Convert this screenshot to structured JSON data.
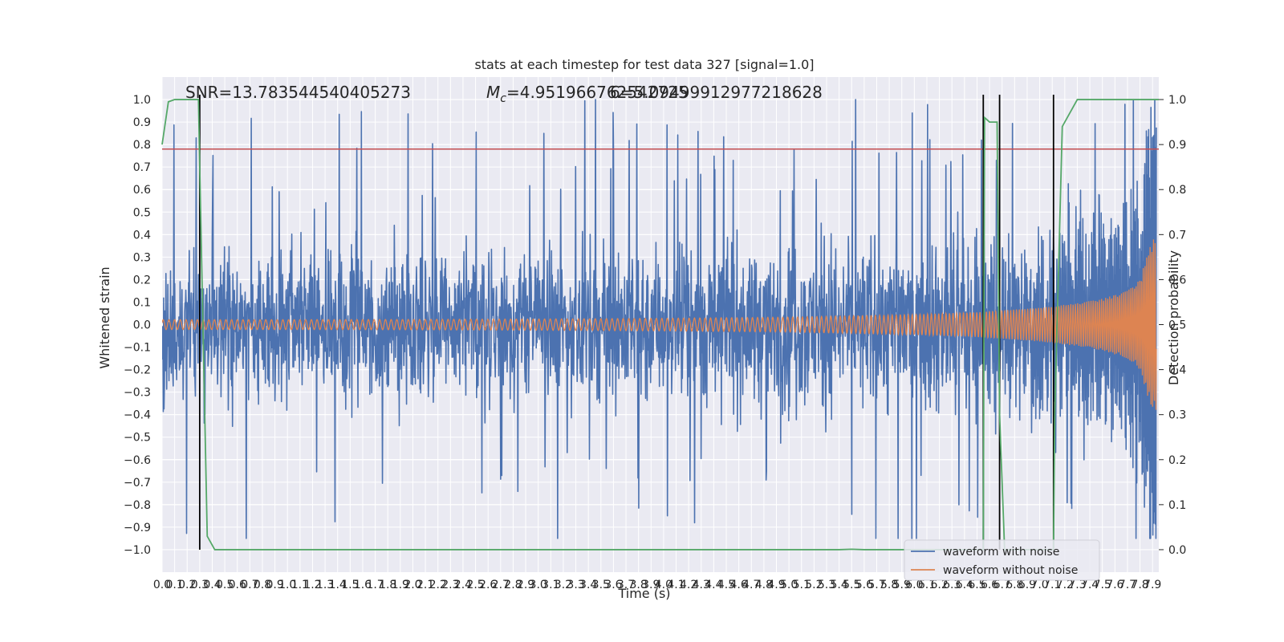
{
  "chart_data": {
    "type": "line",
    "title": "stats at each timestep for test data 327 [signal=1.0]",
    "xlabel": "Time (s)",
    "ylabel_left": "Whitened strain",
    "ylabel_right": "Detection probability",
    "xlim": [
      0.0,
      7.95
    ],
    "ylim_left": [
      -1.1,
      1.1
    ],
    "ylim_right": [
      -0.05,
      1.05
    ],
    "x_ticks": [
      "0.0",
      "0.1",
      "0.2",
      "0.3",
      "0.4",
      "0.5",
      "0.6",
      "0.7",
      "0.8",
      "0.9",
      "1.0",
      "1.1",
      "1.2",
      "1.3",
      "1.4",
      "1.5",
      "1.6",
      "1.7",
      "1.8",
      "1.9",
      "2.0",
      "2.1",
      "2.2",
      "2.3",
      "2.4",
      "2.5",
      "2.6",
      "2.7",
      "2.8",
      "2.9",
      "3.0",
      "3.1",
      "3.2",
      "3.3",
      "3.4",
      "3.5",
      "3.6",
      "3.7",
      "3.8",
      "3.9",
      "4.0",
      "4.1",
      "4.2",
      "4.3",
      "4.4",
      "4.5",
      "4.6",
      "4.7",
      "4.8",
      "4.9",
      "5.0",
      "5.1",
      "5.2",
      "5.3",
      "5.4",
      "5.5",
      "5.6",
      "5.7",
      "5.8",
      "5.9",
      "6.0",
      "6.1",
      "6.2",
      "6.3",
      "6.4",
      "6.5",
      "6.6",
      "6.7",
      "6.8",
      "6.9",
      "7.0",
      "7.1",
      "7.2",
      "7.3",
      "7.4",
      "7.5",
      "7.6",
      "7.7",
      "7.8",
      "7.9"
    ],
    "y_ticks_left": [
      "−1.0",
      "−0.9",
      "−0.8",
      "−0.7",
      "−0.6",
      "−0.5",
      "−0.4",
      "−0.3",
      "−0.2",
      "−0.1",
      "0.0",
      "0.1",
      "0.2",
      "0.3",
      "0.4",
      "0.5",
      "0.6",
      "0.7",
      "0.8",
      "0.9",
      "1.0"
    ],
    "y_ticks_right": [
      "0.0",
      "0.1",
      "0.2",
      "0.3",
      "0.4",
      "0.5",
      "0.6",
      "0.7",
      "0.8",
      "0.9",
      "1.0"
    ],
    "annotations": {
      "snr": "SNR=13.783544540405273",
      "mc_prefix": "M",
      "mc_sub": "c",
      "mc_value": "=4.951966762542725",
      "overlap": "6=5.09499912977218628"
    },
    "threshold_line": {
      "axis": "left",
      "y": 0.78,
      "color": "#c44e52"
    },
    "vertical_lines": [
      {
        "x": 0.3,
        "y_range_left": [
          -1.0,
          1.0
        ]
      },
      {
        "x": 6.55,
        "y_range_left": [
          -1.0,
          1.0
        ]
      },
      {
        "x": 6.68,
        "y_range_left": [
          -1.0,
          1.0
        ]
      },
      {
        "x": 7.11,
        "y_range_left": [
          -1.0,
          1.0
        ]
      }
    ],
    "series": [
      {
        "name": "waveform with noise",
        "axis": "left",
        "color": "#4c72b0",
        "description_stats": {
          "typical_band": [
            -0.45,
            0.45
          ],
          "max": 1.0,
          "min": -0.92
        }
      },
      {
        "name": "waveform without noise",
        "axis": "left",
        "color": "#dd8452",
        "envelope": {
          "x": [
            0.0,
            1.0,
            2.0,
            3.0,
            4.0,
            5.0,
            6.0,
            6.5,
            7.0,
            7.3,
            7.5,
            7.7,
            7.8,
            7.85,
            7.9
          ],
          "amp": [
            0.022,
            0.022,
            0.023,
            0.025,
            0.028,
            0.033,
            0.045,
            0.055,
            0.075,
            0.095,
            0.115,
            0.15,
            0.2,
            0.3,
            0.38
          ]
        }
      },
      {
        "name": "",
        "axis": "right",
        "color": "#55a868",
        "x": [
          0.0,
          0.05,
          0.1,
          0.2,
          0.29,
          0.3,
          0.36,
          0.42,
          0.6,
          5.4,
          5.5,
          5.6,
          6.5,
          6.55,
          6.56,
          6.6,
          6.66,
          6.68,
          6.72,
          6.8,
          7.0,
          7.1,
          7.11,
          7.12,
          7.18,
          7.3,
          7.9,
          7.95
        ],
        "y": [
          0.9,
          0.995,
          1.0,
          1.0,
          1.0,
          0.85,
          0.03,
          0.0,
          0.0,
          0.0,
          0.001,
          0.0,
          0.0,
          0.0,
          0.96,
          0.95,
          0.95,
          0.3,
          0.0,
          0.0,
          0.0,
          0.0,
          0.0,
          0.3,
          0.94,
          1.0,
          1.0,
          1.0
        ]
      }
    ],
    "legend": {
      "placement": "lower-right",
      "entries": [
        "waveform with noise",
        "waveform without noise"
      ]
    },
    "grid": true,
    "background": "#eaeaf2"
  }
}
